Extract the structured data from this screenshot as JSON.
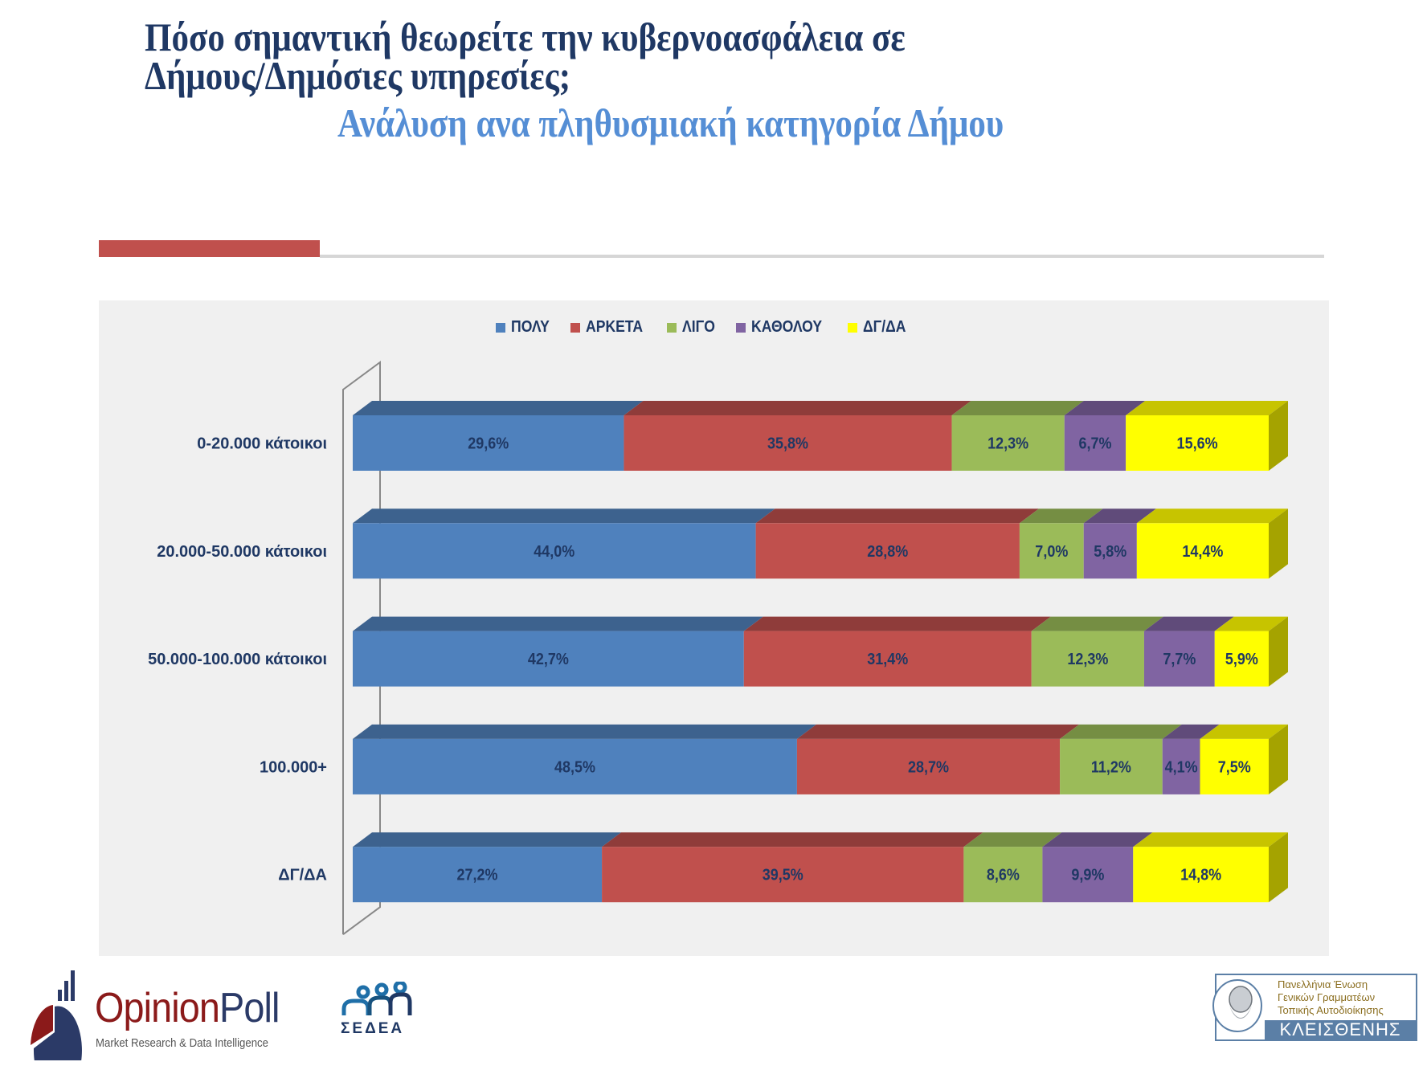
{
  "header": {
    "title_line1": "Πόσο σημαντική θεωρείτε την κυβερνοασφάλεια σε",
    "title_line2": "Δήμους/Δημόσιες υπηρεσίες;",
    "subtitle": "Ανάλυση ανα πληθυσμιακή κατηγορία Δήμου"
  },
  "colors": {
    "title": "#1F3864",
    "subtitle": "#558ED5",
    "accent_bar": "#C0504D",
    "chart_background": "#F0F0F0",
    "label_text": "#1F3864"
  },
  "chart_data": {
    "type": "bar",
    "orientation": "horizontal",
    "stacked": true,
    "percent_stacked": true,
    "style": "3d",
    "title": "",
    "xlabel": "",
    "ylabel": "",
    "xlim": [
      0,
      100
    ],
    "grid": false,
    "legend_position": "top",
    "value_format": "comma-decimal-percent",
    "categories": [
      "0-20.000 κάτοικοι",
      "20.000-50.000 κάτοικοι",
      "50.000-100.000 κάτοικοι",
      "100.000+",
      "ΔΓ/ΔΑ"
    ],
    "series": [
      {
        "name": "ΠΟΛΥ",
        "color": "#4F81BD",
        "top_color": "#3D628E",
        "values": [
          29.6,
          44.0,
          42.7,
          48.5,
          27.2
        ],
        "labels": [
          "29,6%",
          "44,0%",
          "42,7%",
          "48,5%",
          "27,2%"
        ]
      },
      {
        "name": "ΑΡΚΕΤΑ",
        "color": "#C0504D",
        "top_color": "#8F3C3A",
        "values": [
          35.8,
          28.8,
          31.4,
          28.7,
          39.5
        ],
        "labels": [
          "35,8%",
          "28,8%",
          "31,4%",
          "28,7%",
          "39,5%"
        ]
      },
      {
        "name": "ΛΙΓΟ",
        "color": "#9BBB59",
        "top_color": "#758E43",
        "values": [
          12.3,
          7.0,
          12.3,
          11.2,
          8.6
        ],
        "labels": [
          "12,3%",
          "7,0%",
          "12,3%",
          "11,2%",
          "8,6%"
        ]
      },
      {
        "name": "ΚΑΘΟΛΟΥ",
        "color": "#8064A2",
        "top_color": "#604B7A",
        "values": [
          6.7,
          5.8,
          7.7,
          4.1,
          9.9
        ],
        "labels": [
          "6,7%",
          "5,8%",
          "7,7%",
          "4,1%",
          "9,9%"
        ]
      },
      {
        "name": "ΔΓ/ΔΑ",
        "color": "#FFFF00",
        "top_color": "#C7C400",
        "side_color": "#A5A300",
        "values": [
          15.6,
          14.4,
          5.9,
          7.5,
          14.8
        ],
        "labels": [
          "15,6%",
          "14,4%",
          "5,9%",
          "7,5%",
          "14,8%"
        ]
      }
    ]
  },
  "footer": {
    "opinionpoll": {
      "word1": "Opinion",
      "word2": "Poll",
      "tagline": "Market Research & Data Intelligence"
    },
    "sedea": {
      "text": "ΣΕΔΕΑ"
    },
    "kleisthenis": {
      "line1": "Πανελλήνια Ένωση",
      "line2": "Γενικών Γραμματέων",
      "line3": "Τοπικής Αυτοδιοίκησης",
      "band": "ΚΛΕΙΣΘΕΝΗΣ"
    }
  }
}
